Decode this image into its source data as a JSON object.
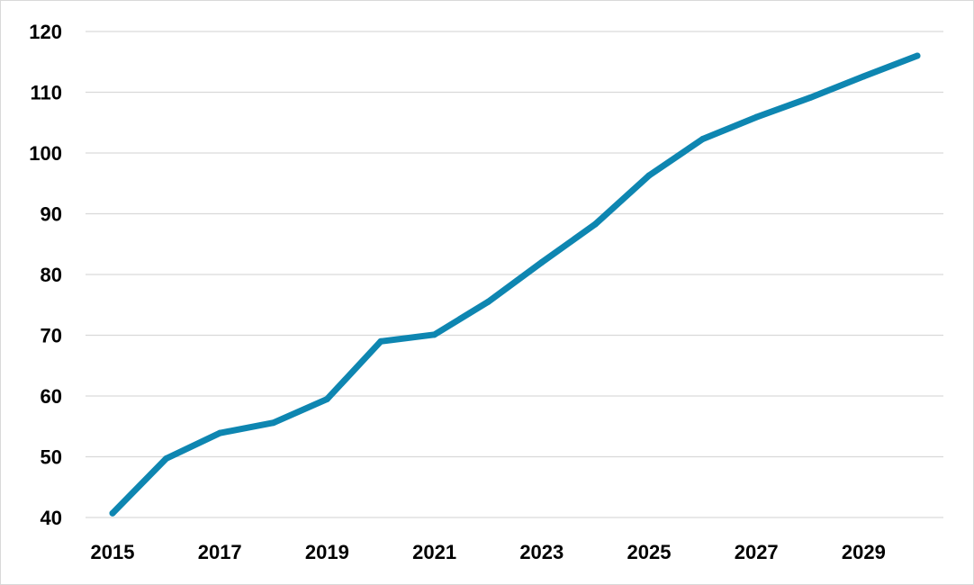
{
  "chart_data": {
    "type": "line",
    "title": "",
    "xlabel": "",
    "ylabel": "",
    "x": [
      2015,
      2016,
      2017,
      2018,
      2019,
      2020,
      2021,
      2022,
      2023,
      2024,
      2025,
      2026,
      2027,
      2028,
      2029,
      2030
    ],
    "x_ticks": [
      "2015",
      "2017",
      "2019",
      "2021",
      "2023",
      "2025",
      "2027",
      "2029"
    ],
    "y_ticks": [
      "40",
      "50",
      "60",
      "70",
      "80",
      "90",
      "100",
      "110",
      "120"
    ],
    "xlim": [
      2015,
      2030
    ],
    "ylim": [
      40,
      120
    ],
    "grid": "horizontal",
    "legend": "none",
    "series": [
      {
        "color": "#0e86b1",
        "values": [
          40.7,
          49.7,
          53.9,
          55.6,
          59.5,
          69.0,
          70.1,
          75.5,
          82.0,
          88.3,
          96.3,
          102.3,
          105.9,
          109.1,
          112.6,
          116.0
        ]
      }
    ]
  }
}
